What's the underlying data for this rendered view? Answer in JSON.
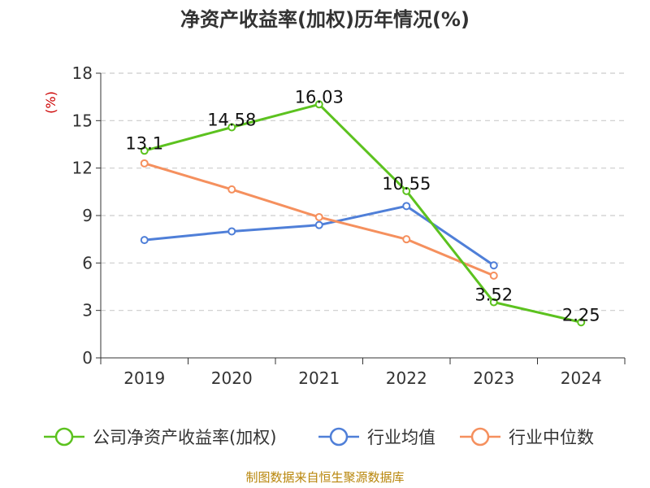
{
  "chart_data": {
    "type": "line",
    "title": "净资产收益率(加权)历年情况(%)",
    "ylabel": "(%)",
    "xlabel": "",
    "categories": [
      "2019",
      "2020",
      "2021",
      "2022",
      "2023",
      "2024"
    ],
    "ylim": [
      0,
      18
    ],
    "yticks": [
      0,
      3,
      6,
      9,
      12,
      15,
      18
    ],
    "grid": true,
    "legend_position": "bottom",
    "series": [
      {
        "name": "公司净资产收益率(加权)",
        "color": "#5cc21f",
        "values": [
          13.1,
          14.58,
          16.03,
          10.55,
          3.52,
          2.25
        ],
        "labels": [
          "13.1",
          "14.58",
          "16.03",
          "10.55",
          "3.52",
          "2.25"
        ]
      },
      {
        "name": "行业均值",
        "color": "#4f7fd8",
        "values": [
          7.45,
          8.0,
          8.4,
          9.6,
          5.85,
          null
        ],
        "labels": []
      },
      {
        "name": "行业中位数",
        "color": "#f5905e",
        "values": [
          12.3,
          10.65,
          8.9,
          7.5,
          5.2,
          null
        ],
        "labels": []
      }
    ]
  },
  "source": "制图数据来自恒生聚源数据库"
}
